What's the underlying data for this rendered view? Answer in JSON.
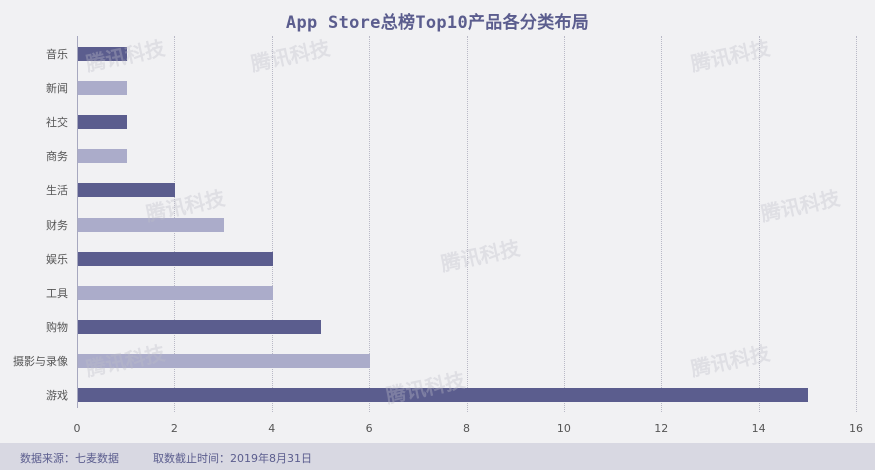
{
  "chart_data": {
    "type": "bar",
    "orientation": "horizontal",
    "title": "App Store总榜Top10产品各分类布局",
    "categories": [
      "音乐",
      "新闻",
      "社交",
      "商务",
      "生活",
      "财务",
      "娱乐",
      "工具",
      "购物",
      "摄影与录像",
      "游戏"
    ],
    "values": [
      1,
      1,
      1,
      1,
      2,
      3,
      4,
      4,
      5,
      6,
      15
    ],
    "xlabel": "",
    "ylabel": "",
    "xlim": [
      0,
      16
    ],
    "xticks": [
      "0",
      "2",
      "4",
      "6",
      "8",
      "10",
      "12",
      "14",
      "16"
    ],
    "grid": "vertical dotted",
    "legend": "none",
    "colors": [
      "#5b5d8e",
      "#abacca"
    ]
  },
  "footer": {
    "source": "数据来源：七麦数据",
    "cutoff": "取数截止时间：2019年8月31日"
  },
  "watermark": "腾讯科技"
}
